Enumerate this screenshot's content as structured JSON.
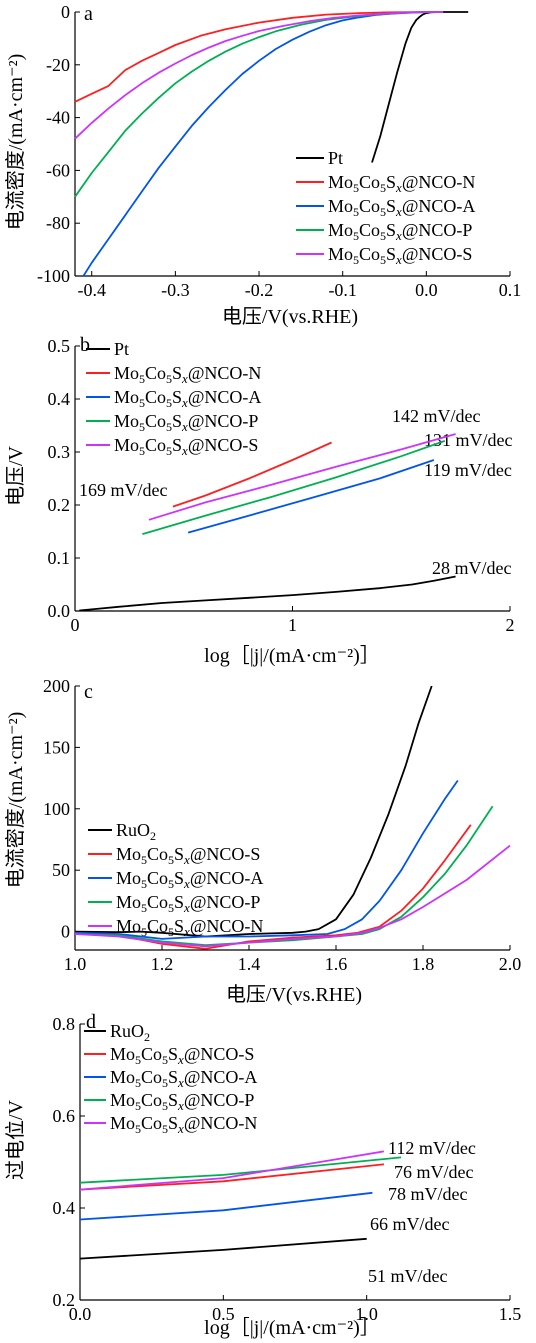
{
  "colors": {
    "black": "#000000",
    "red": "#ff1f1f",
    "blue": "#0055ee",
    "green": "#00b050",
    "magenta": "#cc33ff"
  },
  "chart_data": [
    {
      "panel": "a",
      "type": "line",
      "xlabel": "电压/V(vs.RHE)",
      "ylabel": "电流密度/(mA·cm⁻²)",
      "xlim": [
        -0.42,
        0.1
      ],
      "ylim": [
        -100,
        0
      ],
      "xticks": [
        "-0.4",
        "-0.3",
        "-0.2",
        "-0.1",
        "0.0",
        "0.1"
      ],
      "yticks": [
        "-100",
        "-80",
        "-60",
        "-40",
        "-20",
        "0"
      ],
      "legend_position": "bottom-right",
      "legend": [
        "Pt",
        "Mo5Co5Sx@NCO-N",
        "Mo5Co5Sx@NCO-A",
        "Mo5Co5Sx@NCO-P",
        "Mo5Co5Sx@NCO-S"
      ],
      "series": [
        {
          "name": "Pt",
          "color": "black",
          "x": [
            -0.065,
            -0.055,
            -0.045,
            -0.035,
            -0.025,
            -0.018,
            -0.012,
            -0.008,
            -0.004,
            0.0,
            0.005,
            0.012,
            0.02,
            0.03,
            0.05
          ],
          "y": [
            -57,
            -47,
            -35,
            -23,
            -12,
            -6,
            -3,
            -1.8,
            -0.9,
            -0.4,
            -0.15,
            -0.05,
            0,
            0,
            0
          ]
        },
        {
          "name": "Mo5Co5Sx@NCO-N",
          "color": "red",
          "x": [
            -0.42,
            -0.4,
            -0.38,
            -0.36,
            -0.34,
            -0.32,
            -0.3,
            -0.27,
            -0.24,
            -0.2,
            -0.16,
            -0.12,
            -0.08,
            -0.05,
            -0.02,
            0.0,
            0.02
          ],
          "y": [
            -34,
            -31,
            -28,
            -22,
            -18.5,
            -15.5,
            -12.5,
            -9,
            -6.5,
            -4,
            -2.2,
            -1,
            -0.4,
            -0.15,
            -0.05,
            0,
            0
          ]
        },
        {
          "name": "Mo5Co5Sx@NCO-A",
          "color": "blue",
          "x": [
            -0.41,
            -0.4,
            -0.38,
            -0.36,
            -0.34,
            -0.32,
            -0.3,
            -0.28,
            -0.26,
            -0.24,
            -0.22,
            -0.2,
            -0.18,
            -0.16,
            -0.14,
            -0.12,
            -0.1,
            -0.08,
            -0.06,
            -0.04,
            -0.02,
            0.0,
            0.02
          ],
          "y": [
            -100,
            -95,
            -86,
            -77,
            -68,
            -59,
            -51,
            -43,
            -36,
            -29.5,
            -23.5,
            -18.5,
            -14,
            -10.5,
            -7.5,
            -5,
            -3.2,
            -2,
            -1.1,
            -0.6,
            -0.25,
            -0.05,
            0
          ]
        },
        {
          "name": "Mo5Co5Sx@NCO-P",
          "color": "green",
          "x": [
            -0.42,
            -0.4,
            -0.38,
            -0.36,
            -0.34,
            -0.32,
            -0.3,
            -0.28,
            -0.26,
            -0.24,
            -0.22,
            -0.2,
            -0.18,
            -0.15,
            -0.12,
            -0.09,
            -0.06,
            -0.03,
            0.0,
            0.02
          ],
          "y": [
            -70,
            -61,
            -53,
            -45,
            -38.5,
            -32.5,
            -27,
            -22.5,
            -18.5,
            -15,
            -12,
            -9.5,
            -7.3,
            -4.8,
            -3,
            -1.8,
            -0.9,
            -0.3,
            0,
            0
          ]
        },
        {
          "name": "Mo5Co5Sx@NCO-S",
          "color": "magenta",
          "x": [
            -0.42,
            -0.4,
            -0.38,
            -0.36,
            -0.34,
            -0.32,
            -0.3,
            -0.28,
            -0.26,
            -0.24,
            -0.22,
            -0.2,
            -0.17,
            -0.14,
            -0.11,
            -0.08,
            -0.05,
            -0.02,
            0.0,
            0.02
          ],
          "y": [
            -48,
            -42,
            -36.5,
            -31.5,
            -27,
            -23,
            -19.5,
            -16.3,
            -13.5,
            -11,
            -9,
            -7.2,
            -5.2,
            -3.5,
            -2.2,
            -1.3,
            -0.6,
            -0.2,
            0,
            0
          ]
        }
      ]
    },
    {
      "panel": "b",
      "type": "line",
      "xlabel": "log［|j|/(mA·cm⁻²)］",
      "ylabel": "电压/V",
      "xlim": [
        0,
        2
      ],
      "ylim": [
        0,
        0.5
      ],
      "xticks": [
        "0",
        "1",
        "2"
      ],
      "yticks": [
        "0.0",
        "0.1",
        "0.2",
        "0.3",
        "0.4",
        "0.5"
      ],
      "legend_position": "top-left",
      "legend": [
        "Pt",
        "Mo5Co5Sx@NCO-N",
        "Mo5Co5Sx@NCO-A",
        "Mo5Co5Sx@NCO-P",
        "Mo5Co5Sx@NCO-S"
      ],
      "annotations": [
        "169 mV/dec",
        "142 mV/dec",
        "131 mV/dec",
        "119 mV/dec",
        "28 mV/dec"
      ],
      "series": [
        {
          "name": "Pt",
          "color": "black",
          "x": [
            0.02,
            0.1,
            0.2,
            0.4,
            0.6,
            0.8,
            1.0,
            1.2,
            1.4,
            1.55,
            1.65,
            1.75
          ],
          "y": [
            0.001,
            0.004,
            0.008,
            0.015,
            0.02,
            0.025,
            0.03,
            0.036,
            0.043,
            0.05,
            0.057,
            0.065
          ]
        },
        {
          "name": "Mo5Co5Sx@NCO-N",
          "color": "red",
          "x": [
            0.45,
            0.6,
            0.8,
            1.0,
            1.18
          ],
          "y": [
            0.197,
            0.218,
            0.25,
            0.285,
            0.318
          ]
        },
        {
          "name": "Mo5Co5Sx@NCO-A",
          "color": "blue",
          "x": [
            0.52,
            0.8,
            1.1,
            1.4,
            1.65
          ],
          "y": [
            0.148,
            0.18,
            0.215,
            0.25,
            0.285
          ]
        },
        {
          "name": "Mo5Co5Sx@NCO-P",
          "color": "green",
          "x": [
            0.31,
            0.6,
            0.9,
            1.2,
            1.5,
            1.7
          ],
          "y": [
            0.145,
            0.18,
            0.215,
            0.252,
            0.292,
            0.321
          ]
        },
        {
          "name": "Mo5Co5Sx@NCO-S",
          "color": "magenta",
          "x": [
            0.34,
            0.6,
            0.9,
            1.2,
            1.5,
            1.75
          ],
          "y": [
            0.172,
            0.205,
            0.238,
            0.272,
            0.305,
            0.334
          ]
        }
      ]
    },
    {
      "panel": "c",
      "type": "line",
      "xlabel": "电压/V(vs.RHE)",
      "ylabel": "电流密度/(mA·cm⁻²)",
      "xlim": [
        1.0,
        2.0
      ],
      "ylim": [
        -15,
        200
      ],
      "xticks": [
        "1.0",
        "1.2",
        "1.4",
        "1.6",
        "1.8",
        "2.0"
      ],
      "yticks": [
        "0",
        "50",
        "100",
        "150",
        "200"
      ],
      "legend_position": "left",
      "legend": [
        "RuO2",
        "Mo5Co5Sx@NCO-S",
        "Mo5Co5Sx@NCO-A",
        "Mo5Co5Sx@NCO-P",
        "Mo5Co5Sx@NCO-N"
      ],
      "series": [
        {
          "name": "RuO2",
          "color": "black",
          "x": [
            1.0,
            1.1,
            1.15,
            1.2,
            1.3,
            1.4,
            1.5,
            1.53,
            1.56,
            1.6,
            1.64,
            1.68,
            1.72,
            1.76,
            1.79,
            1.82
          ],
          "y": [
            0,
            -0.5,
            0,
            -1,
            -4,
            -2,
            -1,
            0,
            2,
            10,
            30,
            60,
            95,
            135,
            170,
            200
          ]
        },
        {
          "name": "Mo5Co5Sx@NCO-S",
          "color": "red",
          "x": [
            1.0,
            1.1,
            1.2,
            1.3,
            1.4,
            1.5,
            1.6,
            1.65,
            1.7,
            1.75,
            1.8,
            1.85,
            1.91
          ],
          "y": [
            -1,
            -3,
            -10,
            -14,
            -8,
            -5,
            -3,
            -1,
            4,
            17,
            35,
            58,
            87
          ]
        },
        {
          "name": "Mo5Co5Sx@NCO-A",
          "color": "blue",
          "x": [
            1.0,
            1.1,
            1.2,
            1.3,
            1.4,
            1.5,
            1.58,
            1.62,
            1.66,
            1.7,
            1.75,
            1.8,
            1.85,
            1.88
          ],
          "y": [
            -1,
            -2,
            -6,
            -4,
            -4,
            -3,
            -2,
            2,
            10,
            25,
            50,
            80,
            108,
            123
          ]
        },
        {
          "name": "Mo5Co5Sx@NCO-P",
          "color": "green",
          "x": [
            1.0,
            1.1,
            1.2,
            1.3,
            1.4,
            1.5,
            1.6,
            1.66,
            1.7,
            1.75,
            1.8,
            1.85,
            1.9,
            1.96
          ],
          "y": [
            -2,
            -3,
            -8,
            -11,
            -9,
            -7,
            -4,
            -2,
            2,
            12,
            28,
            47,
            70,
            102
          ]
        },
        {
          "name": "Mo5Co5Sx@NCO-N",
          "color": "magenta",
          "x": [
            1.0,
            1.1,
            1.2,
            1.3,
            1.4,
            1.5,
            1.6,
            1.66,
            1.7,
            1.75,
            1.8,
            1.85,
            1.9,
            2.0
          ],
          "y": [
            -2,
            -4,
            -9,
            -12,
            -9,
            -6,
            -4,
            -1,
            3,
            10,
            20,
            31,
            42,
            70
          ]
        }
      ]
    },
    {
      "panel": "d",
      "type": "line",
      "xlabel": "log［|j|/(mA·cm⁻²)］",
      "ylabel": "过电位/V",
      "xlim": [
        0,
        1.5
      ],
      "ylim": [
        0.2,
        0.8
      ],
      "xticks": [
        "0.0",
        "0.5",
        "1.0",
        "1.5"
      ],
      "yticks": [
        "0.2",
        "0.4",
        "0.6",
        "0.8"
      ],
      "legend_position": "top-left",
      "legend": [
        "RuO2",
        "Mo5Co5Sx@NCO-S",
        "Mo5Co5Sx@NCO-A",
        "Mo5Co5Sx@NCO-P",
        "Mo5Co5Sx@NCO-N"
      ],
      "annotations": [
        "112 mV/dec",
        "76 mV/dec",
        "78 mV/dec",
        "66 mV/dec",
        "51 mV/dec"
      ],
      "series": [
        {
          "name": "RuO2",
          "color": "black",
          "x": [
            0.0,
            0.5,
            1.0
          ],
          "y": [
            0.29,
            0.309,
            0.333
          ]
        },
        {
          "name": "Mo5Co5Sx@NCO-S",
          "color": "red",
          "x": [
            0.0,
            0.5,
            1.06
          ],
          "y": [
            0.44,
            0.458,
            0.495
          ]
        },
        {
          "name": "Mo5Co5Sx@NCO-A",
          "color": "blue",
          "x": [
            0.0,
            0.5,
            1.02
          ],
          "y": [
            0.375,
            0.395,
            0.433
          ]
        },
        {
          "name": "Mo5Co5Sx@NCO-P",
          "color": "green",
          "x": [
            0.0,
            0.5,
            1.12
          ],
          "y": [
            0.455,
            0.472,
            0.51
          ]
        },
        {
          "name": "Mo5Co5Sx@NCO-N",
          "color": "magenta",
          "x": [
            0.0,
            0.5,
            1.06
          ],
          "y": [
            0.44,
            0.465,
            0.523
          ]
        }
      ]
    }
  ]
}
